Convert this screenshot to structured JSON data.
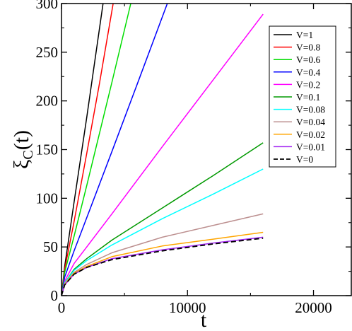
{
  "chart_data": {
    "type": "line",
    "title": "",
    "xlabel": "t",
    "ylabel": {
      "main": "ξ",
      "sub": "C",
      "arg": "(t)"
    },
    "xlim": [
      0,
      23000
    ],
    "ylim": [
      0,
      300
    ],
    "x_ticks": [
      0,
      10000,
      20000
    ],
    "x_tick_labels": [
      "0",
      "10000",
      "20000"
    ],
    "y_ticks": [
      0,
      50,
      100,
      150,
      200,
      250,
      300
    ],
    "y_tick_labels": [
      "0",
      "50",
      "100",
      "150",
      "200",
      "250",
      "300"
    ],
    "grid": false,
    "legend_position": "top-right",
    "series": [
      {
        "name": "V=1",
        "color": "#000000",
        "dash": "solid",
        "x": [
          0,
          250,
          1000,
          2000,
          3300
        ],
        "y": [
          0,
          30,
          96,
          183,
          300
        ]
      },
      {
        "name": "V=0.8",
        "color": "#ff0000",
        "dash": "solid",
        "x": [
          0,
          250,
          1000,
          2000,
          3000,
          4100
        ],
        "y": [
          0,
          27,
          76,
          146,
          217,
          300
        ]
      },
      {
        "name": "V=0.6",
        "color": "#00dd00",
        "dash": "solid",
        "x": [
          0,
          250,
          1000,
          2000,
          4000,
          5500
        ],
        "y": [
          0,
          24,
          61,
          113,
          219,
          300
        ]
      },
      {
        "name": "V=0.4",
        "color": "#0000ff",
        "dash": "solid",
        "x": [
          0,
          250,
          1000,
          2000,
          4000,
          6000,
          8400
        ],
        "y": [
          0,
          19,
          46,
          80,
          148,
          217,
          300
        ]
      },
      {
        "name": "V=0.2",
        "color": "#ff00ff",
        "dash": "solid",
        "x": [
          0,
          250,
          1000,
          2000,
          4000,
          8000,
          12000,
          16000
        ],
        "y": [
          0,
          15,
          33,
          50,
          84,
          153,
          221,
          289
        ]
      },
      {
        "name": "V=0.1",
        "color": "#009900",
        "dash": "solid",
        "x": [
          0,
          250,
          1000,
          2000,
          4000,
          8000,
          12000,
          16000
        ],
        "y": [
          0,
          13,
          27,
          38,
          57,
          90,
          123,
          157
        ]
      },
      {
        "name": "V=0.08",
        "color": "#00ffff",
        "dash": "solid",
        "x": [
          0,
          250,
          1000,
          2000,
          4000,
          8000,
          12000,
          16000
        ],
        "y": [
          0,
          13,
          26,
          36,
          52,
          79,
          104,
          130
        ]
      },
      {
        "name": "V=0.04",
        "color": "#bc8f8f",
        "dash": "solid",
        "x": [
          0,
          250,
          1000,
          2000,
          4000,
          8000,
          12000,
          16000
        ],
        "y": [
          0,
          12,
          24,
          32,
          44,
          60,
          72,
          84
        ]
      },
      {
        "name": "V=0.02",
        "color": "#ffa500",
        "dash": "solid",
        "x": [
          0,
          250,
          1000,
          2000,
          4000,
          8000,
          12000,
          16000
        ],
        "y": [
          0,
          12,
          23,
          30,
          40,
          51,
          58,
          65
        ]
      },
      {
        "name": "V=0.01",
        "color": "#a020f0",
        "dash": "solid",
        "x": [
          0,
          250,
          1000,
          2000,
          4000,
          8000,
          12000,
          16000
        ],
        "y": [
          0,
          11,
          22,
          29,
          38,
          47,
          54,
          60
        ]
      },
      {
        "name": "V=0",
        "color": "#000000",
        "dash": "dashed",
        "x": [
          0,
          250,
          1000,
          2000,
          4000,
          8000,
          12000,
          16000
        ],
        "y": [
          0,
          11,
          22,
          29,
          37,
          46,
          53,
          59
        ]
      }
    ]
  }
}
